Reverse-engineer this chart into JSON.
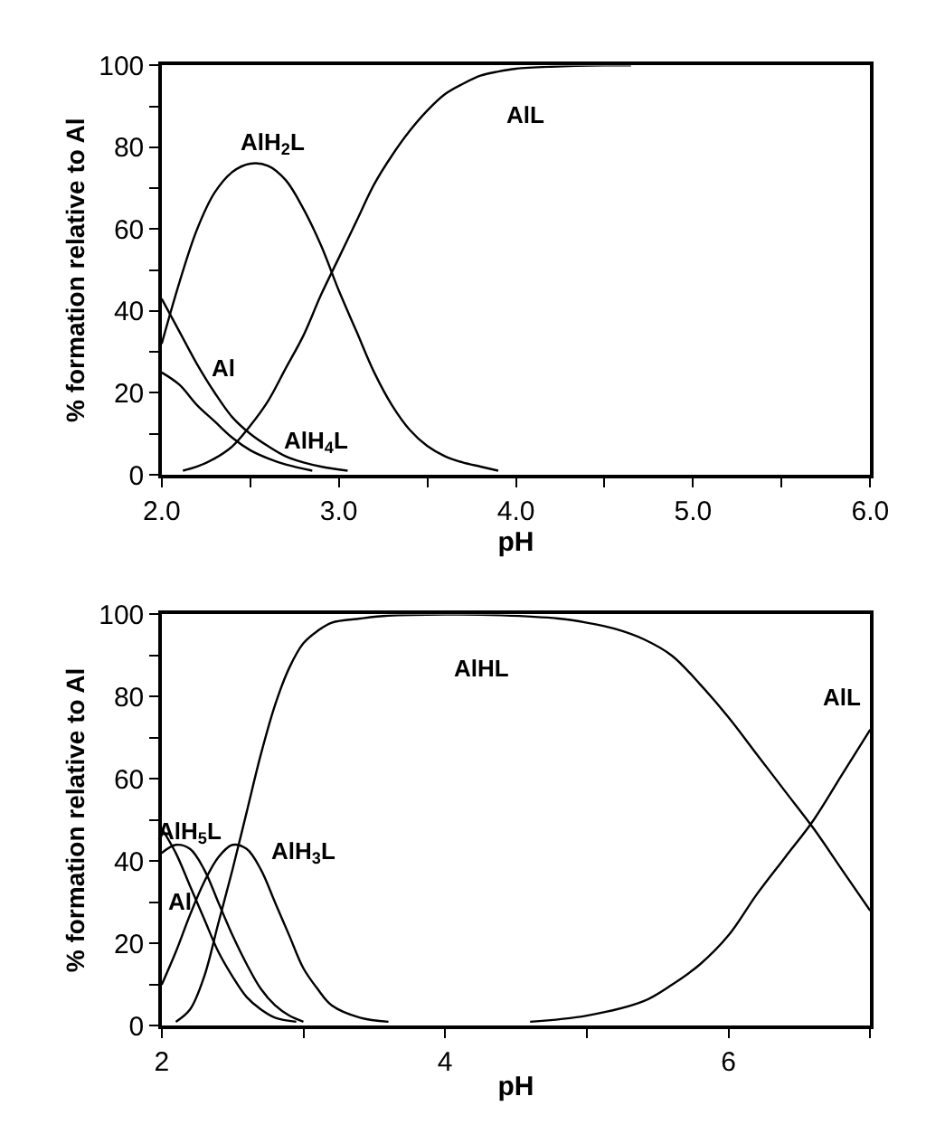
{
  "chart_data": [
    {
      "type": "line",
      "xlabel": "pH",
      "ylabel": "% formation relative to Al",
      "xlim": [
        2,
        6
      ],
      "ylim": [
        0,
        100
      ],
      "xticks": [
        {
          "value": 2,
          "label": "2.0"
        },
        {
          "value": 2.5,
          "label": null
        },
        {
          "value": 3,
          "label": "3.0"
        },
        {
          "value": 3.5,
          "label": null
        },
        {
          "value": 4,
          "label": "4.0"
        },
        {
          "value": 4.5,
          "label": null
        },
        {
          "value": 5,
          "label": "5.0"
        },
        {
          "value": 5.5,
          "label": null
        },
        {
          "value": 6,
          "label": "6.0"
        }
      ],
      "yticks": [
        0,
        {
          "value": 10,
          "label": null
        },
        20,
        {
          "value": 30,
          "label": null
        },
        40,
        {
          "value": 50,
          "label": null
        },
        60,
        {
          "value": 70,
          "label": null
        },
        80,
        {
          "value": 90,
          "label": null
        },
        100
      ],
      "legend": false,
      "marker": "none",
      "line_style": "solid",
      "series": [
        {
          "name": "AlH$_{2}$L",
          "color": "#000000",
          "x": [
            2.0,
            2.1,
            2.2,
            2.3,
            2.4,
            2.5,
            2.6,
            2.7,
            2.8,
            2.9,
            3.0,
            3.1,
            3.2,
            3.3,
            3.4,
            3.5,
            3.6,
            3.7,
            3.8,
            3.9
          ],
          "values": [
            32,
            47,
            60,
            69,
            74,
            76,
            75.5,
            72,
            65,
            56,
            45,
            35,
            25,
            17,
            11,
            7,
            4.5,
            3,
            2,
            1
          ]
        },
        {
          "name": "AlL",
          "color": "#000000",
          "x": [
            2.12,
            2.2,
            2.3,
            2.4,
            2.5,
            2.6,
            2.7,
            2.8,
            2.9,
            3.0,
            3.1,
            3.2,
            3.3,
            3.4,
            3.5,
            3.6,
            3.7,
            3.8,
            3.9,
            4.0,
            4.2,
            4.5,
            4.65
          ],
          "values": [
            1,
            2,
            4,
            7,
            12,
            18,
            26,
            34,
            44,
            53,
            62,
            71,
            78,
            84,
            89,
            93,
            95.5,
            97.5,
            98.5,
            99.2,
            99.7,
            100,
            100
          ]
        },
        {
          "name": "Al",
          "color": "#000000",
          "x": [
            2.0,
            2.1,
            2.2,
            2.3,
            2.4,
            2.5,
            2.6,
            2.7,
            2.8,
            2.9,
            3.05
          ],
          "values": [
            43,
            35,
            27,
            20,
            14,
            10,
            7,
            4.5,
            3,
            2,
            1
          ]
        },
        {
          "name": "AlH$_{4}$L",
          "color": "#000000",
          "x": [
            2.0,
            2.1,
            2.2,
            2.3,
            2.4,
            2.5,
            2.6,
            2.7,
            2.85
          ],
          "values": [
            25,
            22,
            17,
            13,
            9,
            6,
            4,
            2.5,
            1
          ]
        }
      ]
    },
    {
      "type": "line",
      "xlabel": "pH",
      "ylabel": "% formation relative to Al",
      "xlim": [
        2,
        7
      ],
      "ylim": [
        0,
        100
      ],
      "xticks": [
        2,
        {
          "value": 3,
          "label": null
        },
        4,
        {
          "value": 5,
          "label": null
        },
        6,
        {
          "value": 7,
          "label": null
        }
      ],
      "yticks": [
        0,
        {
          "value": 10,
          "label": null
        },
        20,
        {
          "value": 30,
          "label": null
        },
        40,
        {
          "value": 50,
          "label": null
        },
        60,
        {
          "value": 70,
          "label": null
        },
        80,
        {
          "value": 90,
          "label": null
        },
        100
      ],
      "legend": false,
      "marker": "none",
      "line_style": "solid",
      "series": [
        {
          "name": "AlHL",
          "color": "#000000",
          "x": [
            2.1,
            2.2,
            2.3,
            2.4,
            2.5,
            2.6,
            2.7,
            2.8,
            2.9,
            3.0,
            3.1,
            3.2,
            3.4,
            3.6,
            4.0,
            4.4,
            4.8,
            5.0,
            5.2,
            5.4,
            5.6,
            5.8,
            6.0,
            6.2,
            6.4,
            6.6,
            6.8,
            7.0
          ],
          "values": [
            1,
            4,
            12,
            25,
            38,
            52,
            66,
            78,
            87,
            93,
            96,
            98,
            99,
            99.7,
            100,
            99.8,
            99,
            98,
            96.5,
            94,
            90,
            83,
            75,
            66,
            57,
            48,
            38,
            28
          ]
        },
        {
          "name": "AlL",
          "color": "#000000",
          "x": [
            4.6,
            5.0,
            5.4,
            5.6,
            5.8,
            6.0,
            6.2,
            6.4,
            6.6,
            6.8,
            7.0
          ],
          "values": [
            1,
            2.5,
            6,
            10,
            15,
            22,
            32,
            41,
            50,
            61,
            72
          ]
        },
        {
          "name": "AlH$_{5}$L",
          "color": "#000000",
          "x": [
            2.0,
            2.1,
            2.2,
            2.3,
            2.4,
            2.5,
            2.6,
            2.7,
            2.8,
            2.9,
            3.0
          ],
          "values": [
            42,
            44,
            43,
            38,
            30,
            22,
            15,
            9,
            5,
            2.5,
            1
          ]
        },
        {
          "name": "Al",
          "color": "#000000",
          "x": [
            2.0,
            2.1,
            2.2,
            2.3,
            2.4,
            2.5,
            2.6,
            2.7,
            2.8,
            2.95
          ],
          "values": [
            48,
            42,
            34,
            26,
            18,
            12,
            7,
            4,
            2,
            1
          ]
        },
        {
          "name": "AlH$_{3}$L",
          "color": "#000000",
          "x": [
            2.0,
            2.1,
            2.2,
            2.3,
            2.4,
            2.5,
            2.6,
            2.7,
            2.8,
            2.9,
            3.0,
            3.1,
            3.2,
            3.4,
            3.6
          ],
          "values": [
            10,
            18,
            27,
            35,
            41,
            44,
            43,
            38,
            30,
            22,
            14,
            9,
            5,
            2,
            1
          ]
        }
      ]
    }
  ]
}
